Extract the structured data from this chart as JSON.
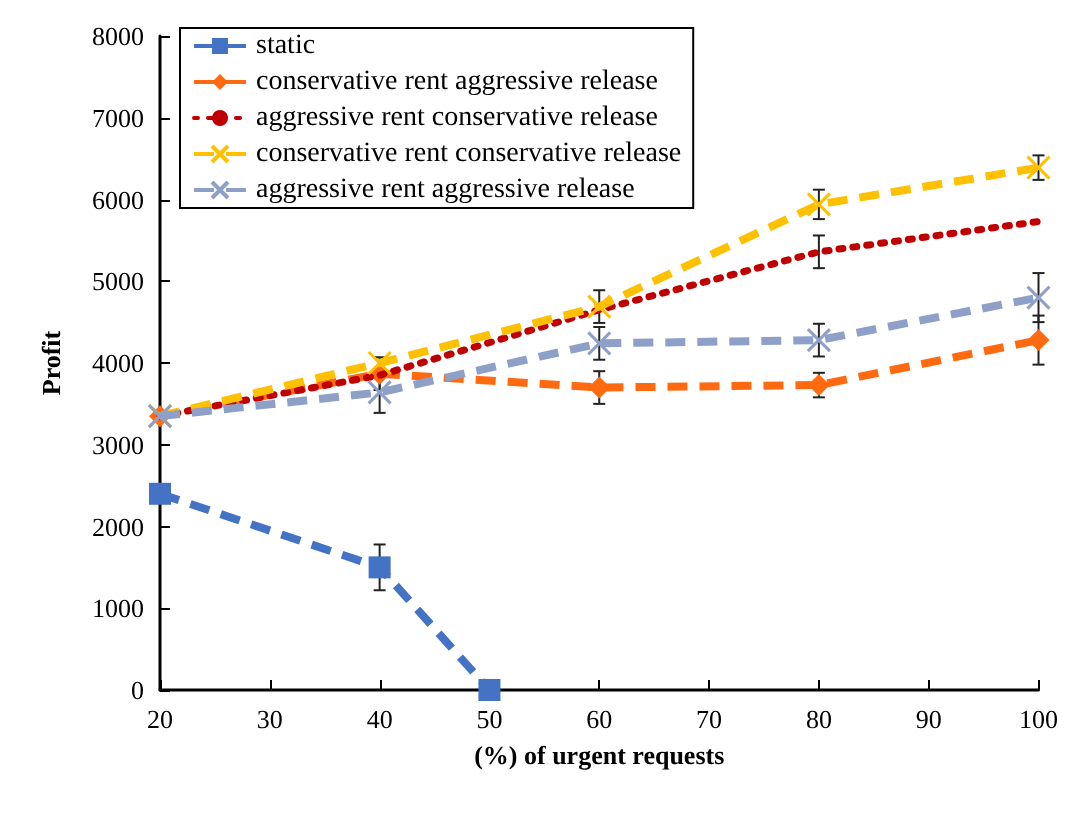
{
  "chart_data": {
    "type": "line",
    "xlabel": "(%) of urgent requests",
    "ylabel": "Profit",
    "x": [
      20,
      40,
      60,
      80,
      100
    ],
    "xlim": [
      20,
      100
    ],
    "xticks": [
      20,
      30,
      40,
      50,
      60,
      70,
      80,
      90,
      100
    ],
    "ylim": [
      0,
      8000
    ],
    "yticks": [
      0,
      1000,
      2000,
      3000,
      4000,
      5000,
      6000,
      7000,
      8000
    ],
    "grid": false,
    "legend": "top left",
    "series": [
      {
        "name": "static",
        "color": "#4472c4",
        "x": [
          20,
          40,
          50
        ],
        "values": [
          2400,
          1500,
          0
        ],
        "errors": [
          null,
          280,
          null
        ],
        "marker": "square",
        "line_style": "dashed"
      },
      {
        "name": "conservative rent aggressive release",
        "color": "#ff6a10",
        "values": [
          3350,
          3870,
          3700,
          3730,
          4280
        ],
        "errors": [
          null,
          200,
          200,
          150,
          300
        ],
        "marker": "diamond",
        "line_style": "dashed"
      },
      {
        "name": "aggressive rent conservative release",
        "color": "#c00000",
        "values": [
          3350,
          3850,
          4650,
          5360,
          5730
        ],
        "errors": [
          null,
          null,
          null,
          200,
          null
        ],
        "marker": "none",
        "line_style": "dotted"
      },
      {
        "name": "conservative rent conservative release",
        "color": "#ffc000",
        "values": [
          3350,
          4000,
          4690,
          5940,
          6390
        ],
        "errors": [
          null,
          null,
          200,
          180,
          150
        ],
        "marker": "cross",
        "line_style": "dashed"
      },
      {
        "name": "aggressive rent aggressive release",
        "color": "#8ea0c8",
        "values": [
          3350,
          3640,
          4240,
          4280,
          4800
        ],
        "errors": [
          null,
          250,
          200,
          200,
          300
        ],
        "marker": "cross",
        "line_style": "dashed"
      }
    ]
  }
}
